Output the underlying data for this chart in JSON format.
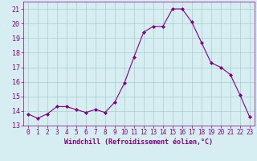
{
  "x": [
    0,
    1,
    2,
    3,
    4,
    5,
    6,
    7,
    8,
    9,
    10,
    11,
    12,
    13,
    14,
    15,
    16,
    17,
    18,
    19,
    20,
    21,
    22,
    23
  ],
  "y": [
    13.8,
    13.5,
    13.8,
    14.3,
    14.3,
    14.1,
    13.9,
    14.1,
    13.9,
    14.6,
    15.9,
    17.7,
    19.4,
    19.8,
    19.8,
    21.0,
    21.0,
    20.1,
    18.7,
    17.3,
    17.0,
    16.5,
    15.1,
    13.6
  ],
  "line_color": "#800080",
  "marker": "D",
  "marker_size": 2.0,
  "bg_color": "#d6eef2",
  "grid_color": "#aacccc",
  "xlabel": "Windchill (Refroidissement éolien,°C)",
  "xlabel_color": "#800080",
  "tick_color": "#800080",
  "ylim": [
    13,
    21.5
  ],
  "xlim": [
    -0.5,
    23.5
  ],
  "yticks": [
    13,
    14,
    15,
    16,
    17,
    18,
    19,
    20,
    21
  ],
  "xticks": [
    0,
    1,
    2,
    3,
    4,
    5,
    6,
    7,
    8,
    9,
    10,
    11,
    12,
    13,
    14,
    15,
    16,
    17,
    18,
    19,
    20,
    21,
    22,
    23
  ],
  "linewidth": 0.8,
  "xlabel_fontsize": 6.0,
  "tick_fontsize": 5.5
}
